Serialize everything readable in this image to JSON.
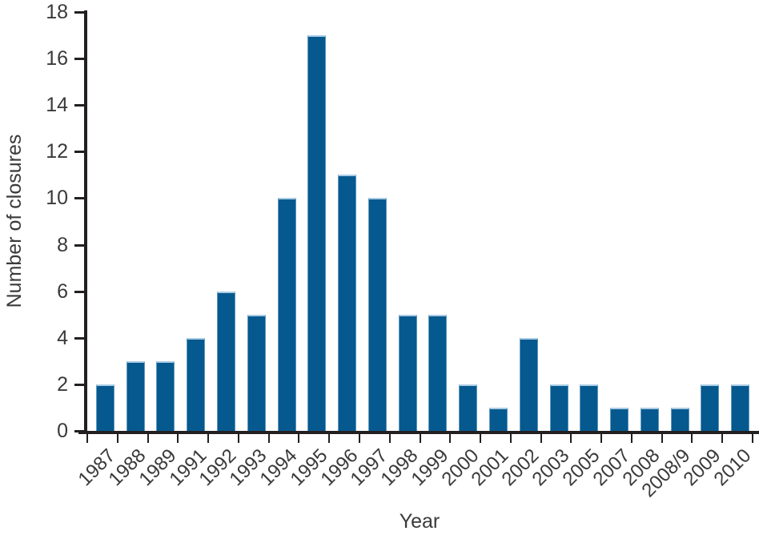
{
  "chart_data": {
    "type": "bar",
    "title": "",
    "xlabel": "Year",
    "ylabel": "Number of closures",
    "categories": [
      "1987",
      "1988",
      "1989",
      "1991",
      "1992",
      "1993",
      "1994",
      "1995",
      "1996",
      "1997",
      "1998",
      "1999",
      "2000",
      "2001",
      "2002",
      "2003",
      "2005",
      "2007",
      "2008",
      "2008/9",
      "2009",
      "2010"
    ],
    "values": [
      2,
      3,
      3,
      4,
      6,
      5,
      10,
      17,
      11,
      10,
      5,
      5,
      2,
      1,
      4,
      2,
      2,
      1,
      1,
      1,
      2,
      2
    ],
    "ylim": [
      0,
      18
    ],
    "yticks": [
      0,
      2,
      4,
      6,
      8,
      10,
      12,
      14,
      16,
      18
    ],
    "grid": false,
    "legend": null,
    "bar_color": "#05598f",
    "bar_edge_color": "#abcce4",
    "axis_color": "#231f20",
    "text_color": "#3a3a3a",
    "background_color": "#ffffff"
  }
}
